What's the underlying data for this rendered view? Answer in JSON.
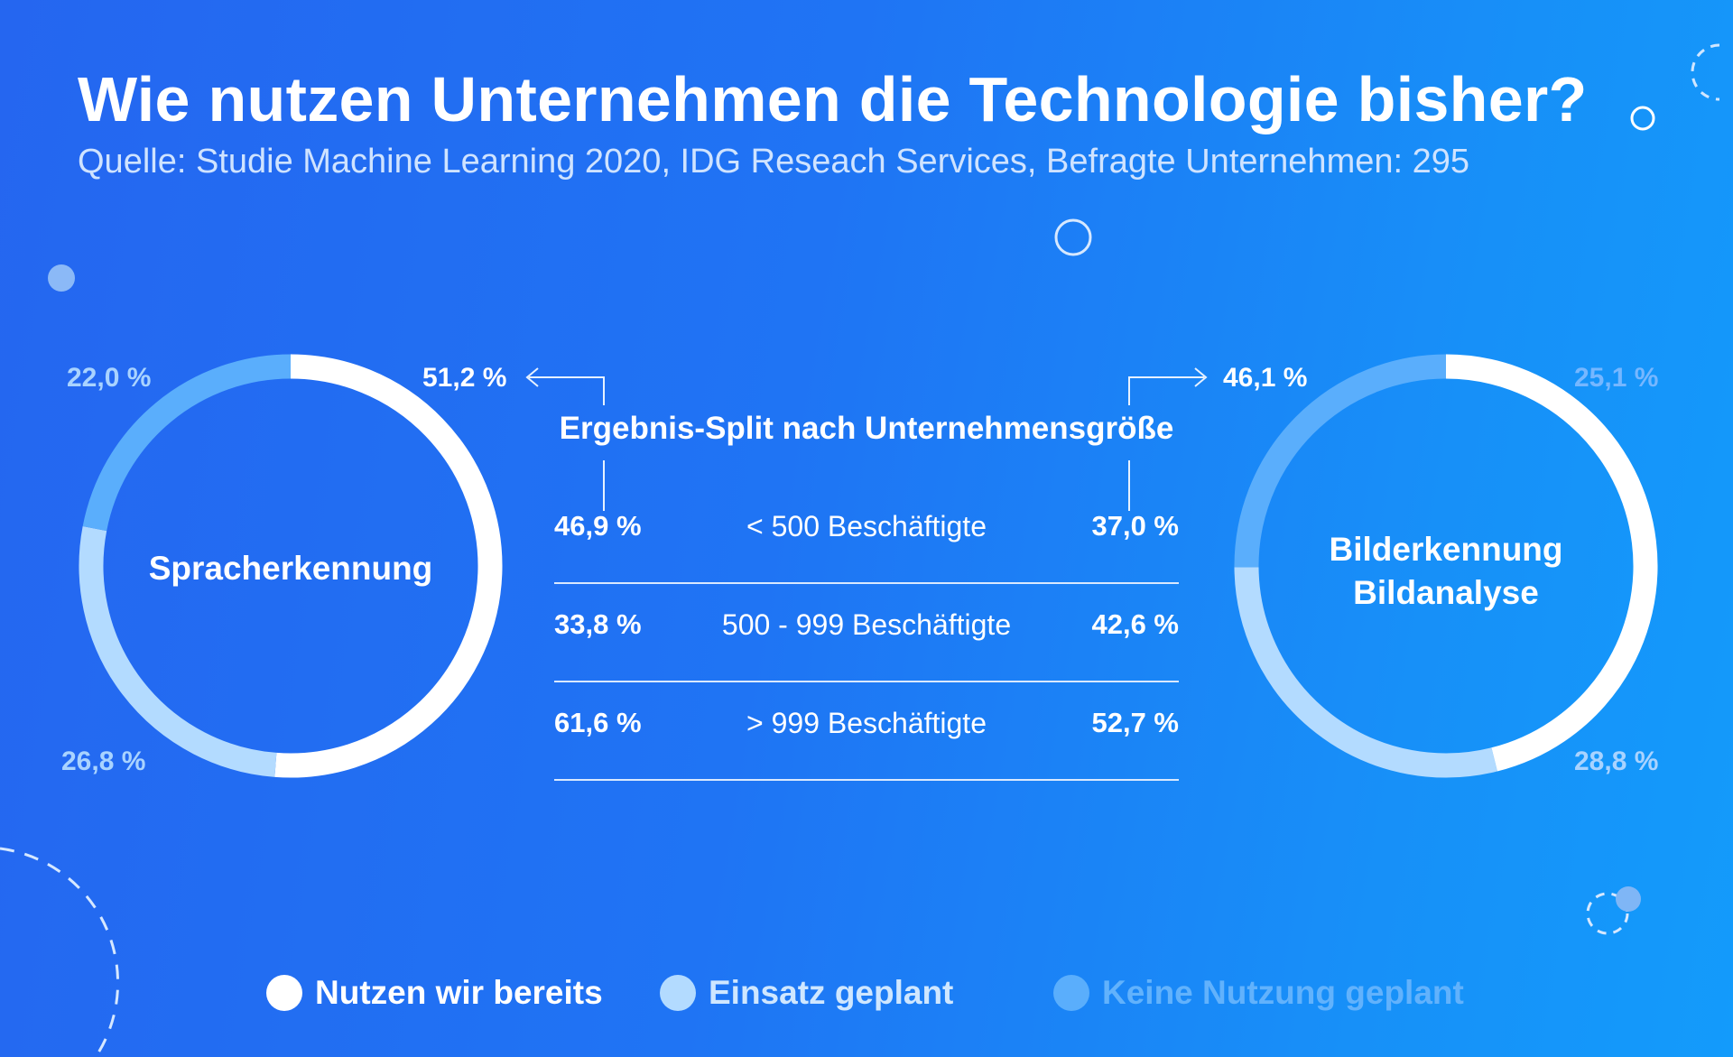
{
  "header": {
    "title": "Wie nutzen Unternehmen die Technologie bisher?",
    "subtitle": "Quelle: Studie Machine Learning 2020, IDG Reseach Services, Befragte Unternehmen: 295"
  },
  "colors": {
    "background": "#1f74f4",
    "nutzen": "#ffffff",
    "geplant": "#b3dbff",
    "keine": "#5aaefc"
  },
  "chart_data": [
    {
      "type": "pie",
      "center_label": [
        "Spracherkennung"
      ],
      "labels": [
        "Nutzen wir bereits",
        "Einsatz geplant",
        "Keine Nutzung geplant"
      ],
      "values": [
        51.2,
        26.8,
        22.0
      ],
      "value_labels": [
        "51,2 %",
        "26,8 %",
        "22,0 %"
      ]
    },
    {
      "type": "pie",
      "center_label": [
        "Bilderkennung",
        "Bildanalyse"
      ],
      "labels": [
        "Nutzen wir bereits",
        "Einsatz geplant",
        "Keine Nutzung geplant"
      ],
      "values": [
        46.1,
        28.8,
        25.1
      ],
      "value_labels": [
        "46,1 %",
        "28,8 %",
        "25,1 %"
      ]
    },
    {
      "type": "table",
      "title": "Ergebnis-Split nach Unternehmensgröße",
      "rows": [
        {
          "left": "46,9 %",
          "label": "< 500 Beschäftigte",
          "right": "37,0 %"
        },
        {
          "left": "33,8 %",
          "label": "500 - 999 Beschäftigte",
          "right": "42,6 %"
        },
        {
          "left": "61,6 %",
          "label": "> 999 Beschäftigte",
          "right": "52,7 %"
        }
      ]
    }
  ],
  "legend": [
    {
      "label": "Nutzen wir bereits"
    },
    {
      "label": "Einsatz geplant"
    },
    {
      "label": "Keine Nutzung geplant"
    }
  ]
}
